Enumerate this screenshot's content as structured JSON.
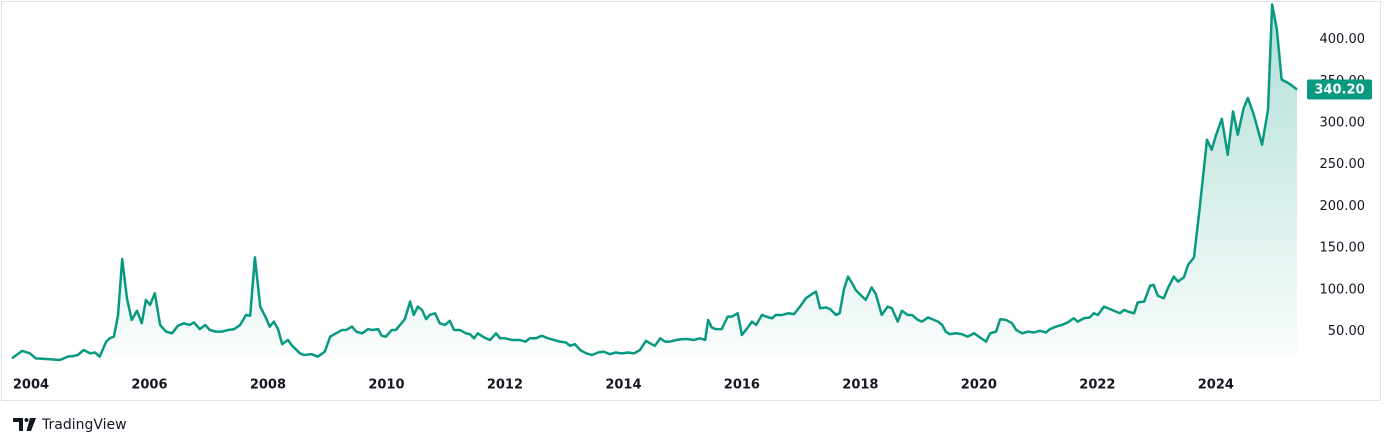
{
  "chart_data": {
    "type": "area",
    "brand": "TradingView",
    "color": "#089981",
    "grid": false,
    "xlim": [
      2003.68,
      2025.42
    ],
    "ylim": [
      22,
      445
    ],
    "xticks": [
      2004,
      2006,
      2008,
      2010,
      2012,
      2014,
      2016,
      2018,
      2020,
      2022,
      2024
    ],
    "yticks": [
      {
        "value": 50,
        "label": "50.00"
      },
      {
        "value": 100,
        "label": "100.00"
      },
      {
        "value": 150,
        "label": "150.00"
      },
      {
        "value": 200,
        "label": "200.00"
      },
      {
        "value": 250,
        "label": "250.00"
      },
      {
        "value": 300,
        "label": "300.00"
      },
      {
        "value": 350,
        "label": "350.00"
      },
      {
        "value": 400,
        "label": "400.00"
      }
    ],
    "last_price": {
      "value": 340.2,
      "label": "340.20"
    },
    "x": [
      2003.68,
      2003.85,
      2003.98,
      2004.08,
      2004.29,
      2004.49,
      2004.62,
      2004.73,
      2004.79,
      2004.89,
      2005.0,
      2005.08,
      2005.16,
      2005.27,
      2005.33,
      2005.4,
      2005.47,
      2005.54,
      2005.62,
      2005.7,
      2005.79,
      2005.87,
      2005.94,
      2006.01,
      2006.09,
      2006.18,
      2006.28,
      2006.38,
      2006.48,
      2006.58,
      2006.68,
      2006.75,
      2006.85,
      2006.94,
      2007.02,
      2007.12,
      2007.22,
      2007.33,
      2007.43,
      2007.53,
      2007.63,
      2007.7,
      2007.78,
      2007.87,
      2007.97,
      2008.03,
      2008.1,
      2008.17,
      2008.24,
      2008.34,
      2008.41,
      2008.54,
      2008.61,
      2008.74,
      2008.84,
      2008.96,
      2009.05,
      2009.15,
      2009.25,
      2009.32,
      2009.42,
      2009.49,
      2009.59,
      2009.69,
      2009.76,
      2009.86,
      2009.92,
      2009.99,
      2010.09,
      2010.16,
      2010.23,
      2010.31,
      2010.4,
      2010.46,
      2010.53,
      2010.6,
      2010.67,
      2010.73,
      2010.82,
      2010.9,
      2010.99,
      2011.07,
      2011.14,
      2011.24,
      2011.34,
      2011.41,
      2011.48,
      2011.54,
      2011.65,
      2011.75,
      2011.85,
      2011.92,
      2012.0,
      2012.12,
      2012.25,
      2012.35,
      2012.42,
      2012.52,
      2012.62,
      2012.73,
      2012.83,
      2012.93,
      2013.03,
      2013.1,
      2013.18,
      2013.27,
      2013.37,
      2013.47,
      2013.57,
      2013.67,
      2013.77,
      2013.87,
      2013.97,
      2014.08,
      2014.18,
      2014.28,
      2014.38,
      2014.45,
      2014.53,
      2014.62,
      2014.7,
      2014.78,
      2014.89,
      2014.99,
      2015.09,
      2015.19,
      2015.29,
      2015.38,
      2015.43,
      2015.49,
      2015.56,
      2015.66,
      2015.76,
      2015.83,
      2015.93,
      2016.0,
      2016.1,
      2016.17,
      2016.24,
      2016.34,
      2016.41,
      2016.51,
      2016.57,
      2016.68,
      2016.78,
      2016.88,
      2016.98,
      2017.08,
      2017.18,
      2017.25,
      2017.32,
      2017.42,
      2017.49,
      2017.59,
      2017.65,
      2017.72,
      2017.79,
      2017.86,
      2017.92,
      2017.99,
      2018.09,
      2018.19,
      2018.26,
      2018.36,
      2018.46,
      2018.53,
      2018.63,
      2018.7,
      2018.8,
      2018.87,
      2018.97,
      2019.04,
      2019.14,
      2019.21,
      2019.31,
      2019.38,
      2019.44,
      2019.51,
      2019.61,
      2019.71,
      2019.81,
      2019.92,
      2020.02,
      2020.12,
      2020.19,
      2020.29,
      2020.36,
      2020.46,
      2020.56,
      2020.63,
      2020.73,
      2020.83,
      2020.93,
      2021.03,
      2021.13,
      2021.2,
      2021.3,
      2021.4,
      2021.5,
      2021.6,
      2021.67,
      2021.77,
      2021.87,
      2021.94,
      2022.01,
      2022.11,
      2022.18,
      2022.28,
      2022.38,
      2022.45,
      2022.52,
      2022.62,
      2022.68,
      2022.79,
      2022.89,
      2022.95,
      2023.02,
      2023.12,
      2023.19,
      2023.29,
      2023.36,
      2023.46,
      2023.53,
      2023.63,
      2023.73,
      2023.85,
      2023.93,
      2024.0,
      2024.1,
      2024.2,
      2024.29,
      2024.37,
      2024.47,
      2024.54,
      2024.64,
      2024.78,
      2024.88,
      2024.95,
      2025.03,
      2025.11,
      2025.22,
      2025.28,
      2025.37
    ],
    "values": [
      18,
      27,
      24,
      18,
      17,
      16,
      20,
      21,
      22,
      28,
      24,
      25,
      20,
      38,
      42,
      44,
      70,
      137,
      90,
      64,
      75,
      60,
      88,
      82,
      96,
      58,
      50,
      48,
      57,
      60,
      58,
      61,
      53,
      58,
      52,
      50,
      50,
      52,
      53,
      58,
      70,
      69,
      139,
      80,
      66,
      56,
      62,
      53,
      35,
      40,
      33,
      24,
      22,
      23,
      20,
      26,
      44,
      48,
      52,
      52,
      56,
      50,
      48,
      53,
      52,
      53,
      45,
      44,
      52,
      52,
      58,
      65,
      86,
      70,
      80,
      76,
      65,
      70,
      72,
      60,
      58,
      63,
      52,
      52,
      48,
      47,
      42,
      48,
      43,
      40,
      48,
      42,
      42,
      40,
      40,
      38,
      42,
      42,
      45,
      42,
      40,
      38,
      37,
      33,
      35,
      28,
      24,
      22,
      25,
      26,
      23,
      25,
      24,
      25,
      24,
      28,
      39,
      36,
      33,
      42,
      38,
      38,
      40,
      41,
      41,
      40,
      42,
      40,
      64,
      55,
      53,
      53,
      68,
      68,
      72,
      46,
      55,
      62,
      58,
      70,
      68,
      66,
      70,
      70,
      72,
      71,
      80,
      90,
      95,
      98,
      78,
      79,
      77,
      70,
      72,
      100,
      116,
      108,
      100,
      95,
      88,
      103,
      95,
      70,
      80,
      78,
      62,
      75,
      70,
      70,
      64,
      62,
      67,
      65,
      62,
      58,
      50,
      47,
      48,
      47,
      44,
      48,
      43,
      38,
      48,
      50,
      65,
      64,
      60,
      52,
      48,
      50,
      49,
      51,
      49,
      53,
      56,
      58,
      61,
      66,
      62,
      66,
      67,
      72,
      70,
      80,
      78,
      75,
      72,
      76,
      74,
      72,
      85,
      86,
      105,
      106,
      93,
      90,
      102,
      116,
      110,
      115,
      130,
      139,
      200,
      280,
      268,
      285,
      305,
      262,
      314,
      286,
      318,
      330,
      310,
      274,
      316,
      442,
      412,
      352,
      348,
      345,
      340.2
    ]
  }
}
